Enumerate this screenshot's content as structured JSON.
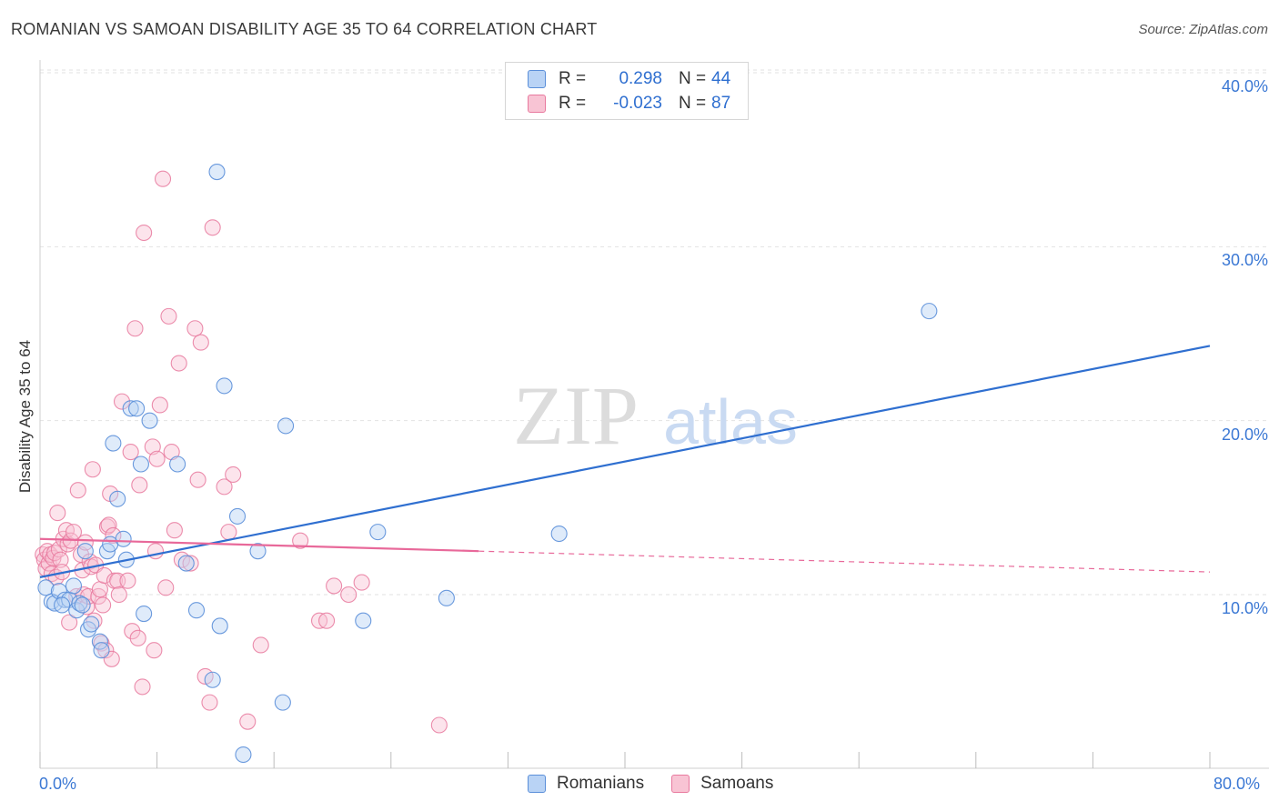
{
  "title": "ROMANIAN VS SAMOAN DISABILITY AGE 35 TO 64 CORRELATION CHART",
  "source": "Source: ZipAtlas.com",
  "watermark": {
    "zip": "ZIP",
    "atlas": "atlas"
  },
  "legend": {
    "romanians": {
      "r_label": "R =",
      "r_value": "0.298",
      "n_label": "N =",
      "n_value": "44"
    },
    "samoans": {
      "r_label": "R =",
      "r_value": "-0.023",
      "n_label": "N =",
      "n_value": "87"
    }
  },
  "x_labels": {
    "min": "0.0%",
    "max": "80.0%"
  },
  "y_labels": [
    "10.0%",
    "20.0%",
    "30.0%",
    "40.0%"
  ],
  "colors": {
    "romanians": "#5b8fd9",
    "romanians_fill": "#b9d3f5",
    "samoans": "#e8799e",
    "samoans_fill": "#f8c4d4",
    "blue_line": "#2f6fd0",
    "pink_line": "#e8699a"
  },
  "chart_data": {
    "type": "scatter",
    "title": "ROMANIAN VS SAMOAN DISABILITY AGE 35 TO 64 CORRELATION CHART",
    "xlabel": "",
    "ylabel": "Disability Age 35 to 64",
    "xlim": [
      0,
      80
    ],
    "ylim": [
      0,
      42
    ],
    "y_ticks": [
      10,
      20,
      30,
      40
    ],
    "legend_position": "bottom-center",
    "series": [
      {
        "name": "Romanians",
        "r": 0.298,
        "n": 44,
        "trend": {
          "x": [
            0,
            80
          ],
          "y": [
            11.0,
            24.3
          ]
        },
        "points": [
          [
            0.4,
            10.4
          ],
          [
            0.8,
            9.6
          ],
          [
            1.0,
            9.5
          ],
          [
            1.3,
            10.2
          ],
          [
            1.7,
            9.7
          ],
          [
            2.0,
            9.7
          ],
          [
            2.3,
            10.5
          ],
          [
            2.5,
            9.1
          ],
          [
            2.7,
            9.5
          ],
          [
            2.9,
            9.4
          ],
          [
            3.1,
            12.5
          ],
          [
            3.3,
            8.0
          ],
          [
            3.5,
            8.3
          ],
          [
            4.1,
            7.3
          ],
          [
            4.2,
            6.8
          ],
          [
            4.6,
            12.5
          ],
          [
            4.8,
            12.9
          ],
          [
            5.0,
            18.7
          ],
          [
            5.3,
            15.5
          ],
          [
            5.7,
            13.2
          ],
          [
            5.9,
            12.0
          ],
          [
            6.2,
            20.7
          ],
          [
            6.6,
            20.7
          ],
          [
            6.9,
            17.5
          ],
          [
            7.1,
            8.9
          ],
          [
            7.5,
            20.0
          ],
          [
            9.4,
            17.5
          ],
          [
            10.0,
            11.8
          ],
          [
            10.7,
            9.1
          ],
          [
            11.8,
            5.1
          ],
          [
            12.1,
            34.3
          ],
          [
            12.3,
            8.2
          ],
          [
            12.6,
            22.0
          ],
          [
            13.5,
            14.5
          ],
          [
            13.9,
            0.8
          ],
          [
            14.9,
            12.5
          ],
          [
            16.6,
            3.8
          ],
          [
            16.8,
            19.7
          ],
          [
            22.1,
            8.5
          ],
          [
            23.1,
            13.6
          ],
          [
            27.8,
            9.8
          ],
          [
            35.5,
            13.5
          ],
          [
            60.8,
            26.3
          ],
          [
            1.5,
            9.4
          ]
        ]
      },
      {
        "name": "Samoans",
        "r": -0.023,
        "n": 87,
        "trend": {
          "x": [
            0,
            30
          ],
          "y": [
            13.2,
            12.5
          ]
        },
        "trend_extension": {
          "x": [
            30,
            80
          ],
          "y": [
            12.5,
            11.3
          ]
        },
        "points": [
          [
            0.2,
            12.3
          ],
          [
            0.3,
            12.0
          ],
          [
            0.4,
            11.5
          ],
          [
            0.5,
            12.5
          ],
          [
            0.6,
            11.8
          ],
          [
            0.7,
            12.3
          ],
          [
            0.8,
            11.2
          ],
          [
            0.9,
            12.1
          ],
          [
            1.0,
            12.4
          ],
          [
            1.1,
            11.0
          ],
          [
            1.2,
            14.7
          ],
          [
            1.3,
            12.6
          ],
          [
            1.4,
            12.0
          ],
          [
            1.5,
            11.3
          ],
          [
            1.6,
            13.2
          ],
          [
            1.8,
            13.7
          ],
          [
            1.9,
            12.9
          ],
          [
            2.0,
            8.4
          ],
          [
            2.1,
            13.1
          ],
          [
            2.3,
            13.6
          ],
          [
            2.5,
            9.9
          ],
          [
            2.6,
            16.0
          ],
          [
            2.8,
            12.3
          ],
          [
            2.9,
            11.4
          ],
          [
            3.0,
            10.0
          ],
          [
            3.1,
            13.0
          ],
          [
            3.2,
            9.3
          ],
          [
            3.3,
            9.9
          ],
          [
            3.4,
            11.9
          ],
          [
            3.5,
            11.6
          ],
          [
            3.6,
            17.2
          ],
          [
            3.7,
            8.5
          ],
          [
            3.8,
            11.7
          ],
          [
            4.0,
            9.9
          ],
          [
            4.1,
            10.3
          ],
          [
            4.2,
            7.2
          ],
          [
            4.3,
            9.4
          ],
          [
            4.4,
            11.1
          ],
          [
            4.5,
            6.8
          ],
          [
            4.6,
            13.9
          ],
          [
            4.7,
            14.0
          ],
          [
            4.8,
            15.8
          ],
          [
            4.9,
            6.3
          ],
          [
            5.0,
            13.4
          ],
          [
            5.1,
            10.8
          ],
          [
            5.3,
            10.8
          ],
          [
            5.4,
            10.0
          ],
          [
            5.6,
            21.1
          ],
          [
            6.0,
            10.8
          ],
          [
            6.2,
            18.2
          ],
          [
            6.3,
            7.9
          ],
          [
            6.5,
            25.3
          ],
          [
            6.7,
            7.5
          ],
          [
            6.8,
            16.3
          ],
          [
            7.0,
            4.7
          ],
          [
            7.1,
            30.8
          ],
          [
            7.7,
            18.5
          ],
          [
            7.8,
            6.8
          ],
          [
            7.9,
            12.5
          ],
          [
            8.0,
            17.8
          ],
          [
            8.2,
            20.9
          ],
          [
            8.4,
            33.9
          ],
          [
            8.6,
            10.4
          ],
          [
            8.8,
            26.0
          ],
          [
            9.0,
            18.2
          ],
          [
            9.2,
            13.7
          ],
          [
            9.5,
            23.3
          ],
          [
            9.7,
            12.0
          ],
          [
            10.3,
            11.8
          ],
          [
            10.6,
            25.3
          ],
          [
            10.8,
            16.6
          ],
          [
            11.0,
            24.5
          ],
          [
            11.3,
            5.3
          ],
          [
            11.6,
            3.8
          ],
          [
            11.8,
            31.1
          ],
          [
            12.6,
            16.2
          ],
          [
            12.9,
            13.6
          ],
          [
            13.2,
            16.9
          ],
          [
            14.2,
            2.7
          ],
          [
            15.1,
            7.1
          ],
          [
            17.8,
            13.1
          ],
          [
            19.1,
            8.5
          ],
          [
            19.6,
            8.5
          ],
          [
            20.1,
            10.5
          ],
          [
            21.1,
            10.0
          ],
          [
            22.0,
            10.7
          ],
          [
            27.3,
            2.5
          ]
        ]
      }
    ]
  }
}
